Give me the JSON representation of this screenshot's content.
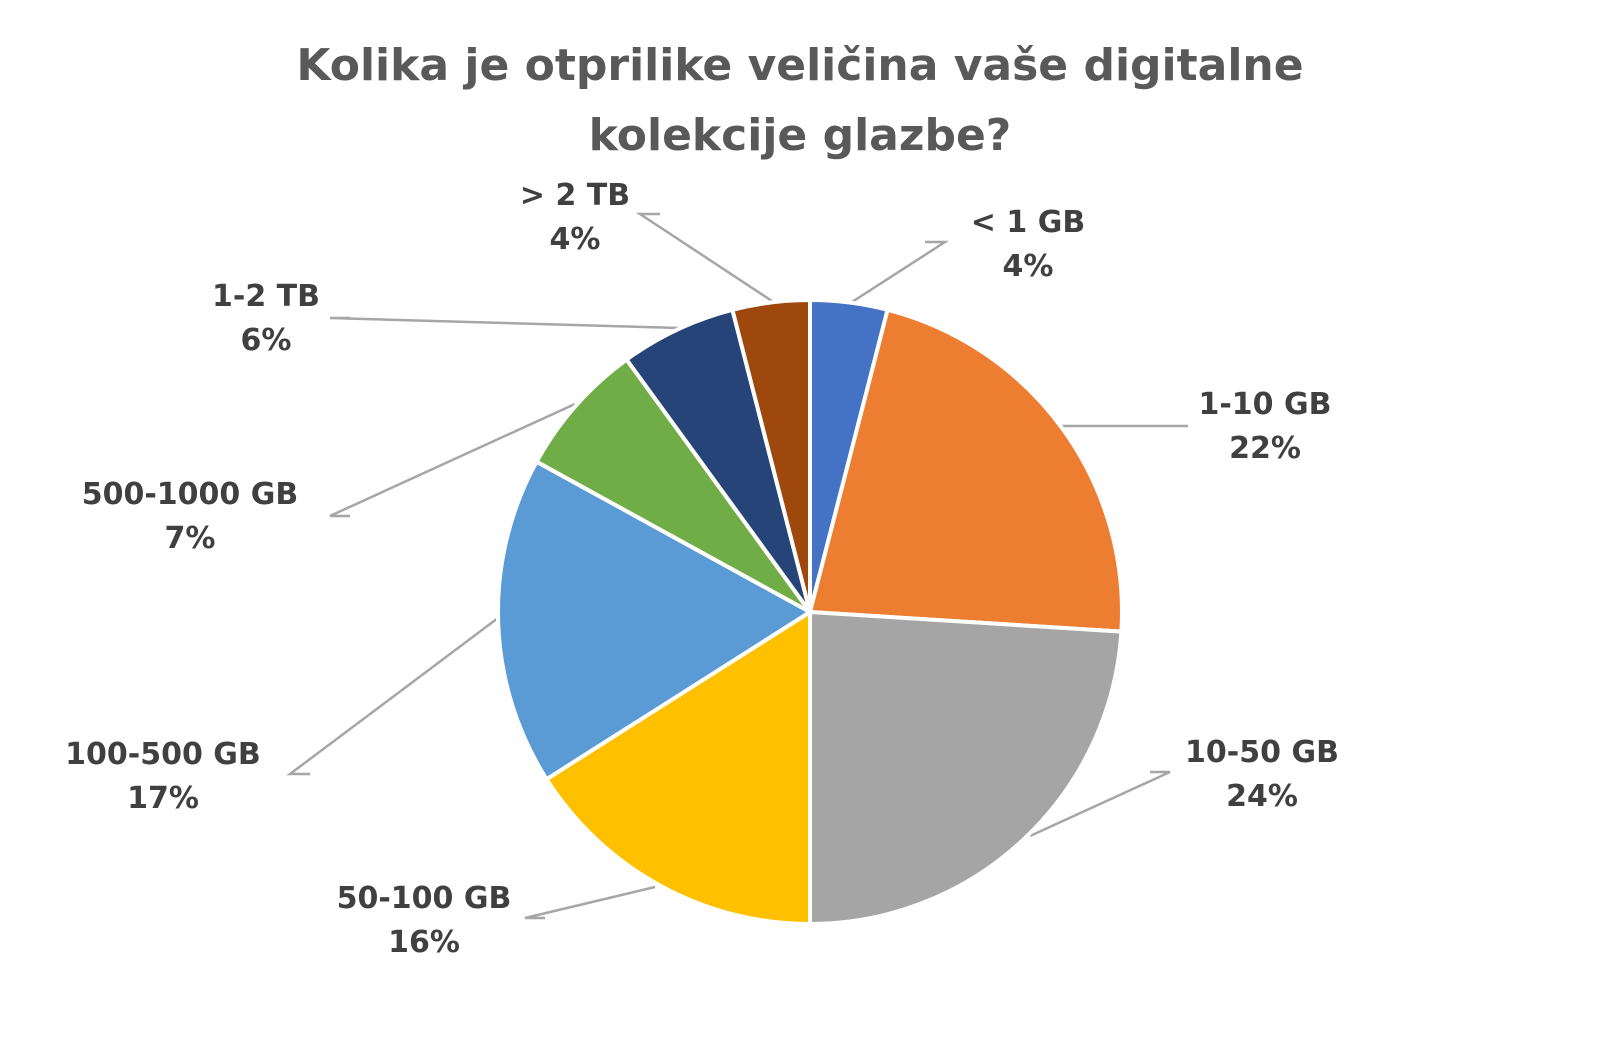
{
  "chart_data": {
    "type": "pie",
    "title": [
      "Kolika je otprilike veličina vaše digitalne",
      "kolekcije glazbe?"
    ],
    "categories": [
      "< 1 GB",
      "1-10 GB",
      "10-50 GB",
      "50-100 GB",
      "100-500 GB",
      "500-1000 GB",
      "1-2 TB",
      "> 2 TB"
    ],
    "values": [
      4,
      22,
      24,
      16,
      17,
      7,
      6,
      4
    ],
    "value_labels": [
      "4%",
      "22%",
      "24%",
      "16%",
      "17%",
      "7%",
      "6%",
      "4%"
    ],
    "colors": [
      "#4472c4",
      "#ed7d31",
      "#a5a5a5",
      "#ffc000",
      "#5b9bd5",
      "#70ad47",
      "#264478",
      "#9e480e"
    ],
    "start": "12 o'clock, clockwise",
    "legend": "none (data labels with leader lines)"
  }
}
